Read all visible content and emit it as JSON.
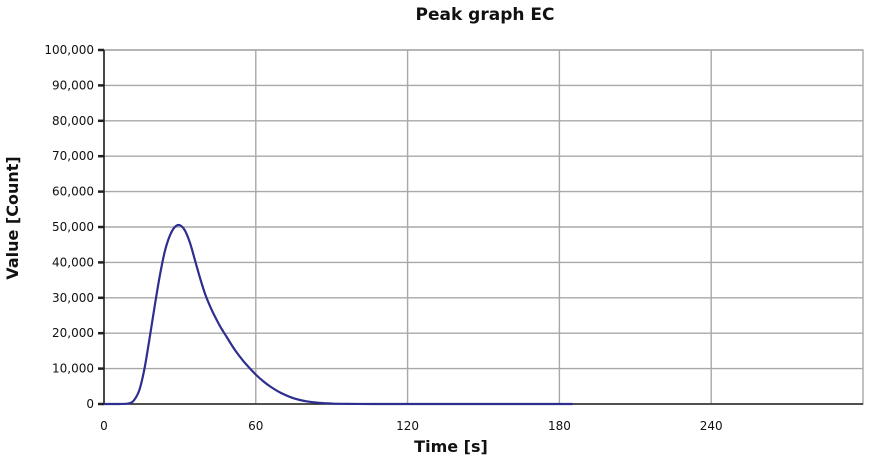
{
  "chart_data": {
    "type": "line",
    "title": "Peak graph EC",
    "xlabel": "Time [s]",
    "ylabel": "Value [Count]",
    "xlim": [
      0,
      300
    ],
    "ylim": [
      0,
      100000
    ],
    "x_ticks": [
      0,
      60,
      120,
      180,
      240
    ],
    "x_tick_labels": [
      "0",
      "60",
      "120",
      "180",
      "240"
    ],
    "y_ticks": [
      0,
      10000,
      20000,
      30000,
      40000,
      50000,
      60000,
      70000,
      80000,
      90000,
      100000
    ],
    "y_tick_labels": [
      "0",
      "10,000",
      "20,000",
      "30,000",
      "40,000",
      "50,000",
      "60,000",
      "70,000",
      "80,000",
      "90,000",
      "100,000"
    ],
    "grid": true,
    "colors": {
      "series": "#2e2e8f",
      "grid": "#a8a8a8"
    },
    "series": [
      {
        "x": [
          0,
          6,
          10,
          12,
          14,
          16,
          18,
          20,
          22,
          24,
          26,
          28,
          30,
          32,
          34,
          36,
          38,
          40,
          42,
          44,
          46,
          48,
          50,
          52,
          55,
          58,
          60,
          63,
          66,
          70,
          75,
          80,
          85,
          90,
          95,
          100,
          110,
          120,
          140,
          160,
          185
        ],
        "y": [
          0,
          0,
          200,
          1200,
          4000,
          10000,
          18500,
          27500,
          36000,
          43000,
          47500,
          50000,
          50500,
          49000,
          45500,
          40500,
          35500,
          31000,
          27500,
          24500,
          21800,
          19500,
          17200,
          15000,
          12200,
          9800,
          8300,
          6400,
          4800,
          3100,
          1600,
          750,
          320,
          130,
          50,
          20,
          5,
          0,
          0,
          0,
          0
        ]
      }
    ]
  }
}
